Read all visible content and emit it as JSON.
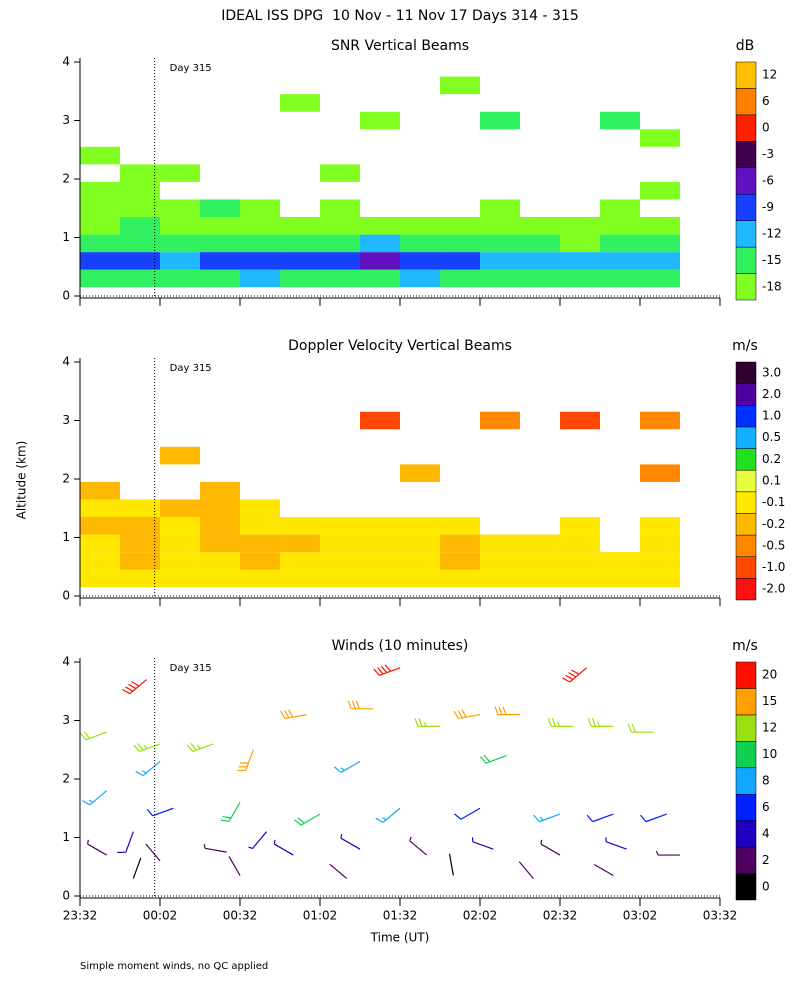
{
  "figure_title": "IDEAL ISS DPG  10 Nov - 11 Nov 17 Days 314 - 315",
  "y_axis_label": "Altitude (km)",
  "x_axis_label": "Time (UT)",
  "footnote": "Simple moment winds, no QC applied",
  "chart_data": [
    {
      "type": "heatmap",
      "title": "SNR Vertical Beams",
      "annotation": "Day 315",
      "marker_x": 28,
      "xlim": [
        0,
        240
      ],
      "ylim": [
        0,
        4
      ],
      "yticks": [
        0,
        1,
        2,
        3,
        4
      ],
      "x": [
        7.5,
        22.5,
        37.5,
        52.5,
        67.5,
        82.5,
        97.5,
        112.5,
        127.5,
        142.5,
        157.5,
        172.5,
        187.5,
        202.5,
        217.5
      ],
      "y": [
        0.3,
        0.6,
        0.9,
        1.2,
        1.5,
        1.8,
        2.1,
        2.4,
        2.7,
        3.0,
        3.3,
        3.6
      ],
      "z": [
        [
          -15,
          -14,
          -13,
          -14,
          -12,
          -15,
          -14,
          -13,
          -12,
          -14,
          -13,
          -15,
          -14,
          -13,
          -14
        ],
        [
          -9,
          -8,
          -10,
          -9,
          -9,
          -8,
          -7,
          -6,
          -7,
          -8,
          -11,
          -12,
          -10,
          -11,
          -12
        ],
        [
          -14,
          -13,
          -15,
          -14,
          -13,
          -14,
          -15,
          -12,
          -13,
          -15,
          -14,
          -13,
          -16,
          -15,
          -13
        ],
        [
          -16,
          -15,
          -16,
          -16,
          -17,
          -16,
          -17,
          -17,
          -16,
          -17,
          -17,
          -17,
          -16,
          -17,
          -17
        ],
        [
          -17,
          -16,
          -17,
          -15,
          -17,
          null,
          -17,
          null,
          null,
          null,
          -17,
          null,
          null,
          -17,
          null
        ],
        [
          -17,
          -17,
          null,
          null,
          null,
          null,
          null,
          null,
          null,
          null,
          null,
          null,
          null,
          null,
          -17
        ],
        [
          null,
          -17,
          -17,
          null,
          null,
          null,
          -17,
          null,
          null,
          null,
          null,
          null,
          null,
          null,
          null
        ],
        [
          -17,
          null,
          null,
          null,
          null,
          null,
          null,
          null,
          null,
          null,
          null,
          null,
          null,
          null,
          null
        ],
        [
          null,
          null,
          null,
          null,
          null,
          null,
          null,
          null,
          null,
          null,
          null,
          null,
          null,
          null,
          -17
        ],
        [
          null,
          null,
          null,
          null,
          null,
          null,
          null,
          -17,
          null,
          null,
          -15,
          null,
          null,
          -14,
          null
        ],
        [
          null,
          null,
          null,
          null,
          null,
          -17,
          null,
          null,
          null,
          null,
          null,
          null,
          null,
          null,
          null
        ],
        [
          null,
          null,
          null,
          null,
          null,
          null,
          null,
          null,
          null,
          -17,
          null,
          null,
          null,
          null,
          null
        ]
      ],
      "colorbar": {
        "title": "dB",
        "levels": [
          -18,
          -15,
          -12,
          -9,
          -6,
          -3,
          0,
          6,
          12
        ],
        "colors": [
          "#80ff20",
          "#30f060",
          "#20b8ff",
          "#1840ff",
          "#6010c0",
          "#400050",
          "#ff2000",
          "#ff8000",
          "#ffc000"
        ]
      }
    },
    {
      "type": "heatmap",
      "title": "Doppler Velocity Vertical Beams",
      "annotation": "Day 315",
      "marker_x": 28,
      "xlim": [
        0,
        240
      ],
      "ylim": [
        0,
        4
      ],
      "yticks": [
        0,
        1,
        2,
        3,
        4
      ],
      "x": [
        7.5,
        22.5,
        37.5,
        52.5,
        67.5,
        82.5,
        97.5,
        112.5,
        127.5,
        142.5,
        157.5,
        172.5,
        187.5,
        202.5,
        217.5
      ],
      "y": [
        0.3,
        0.6,
        0.9,
        1.2,
        1.5,
        1.8,
        2.1,
        2.4,
        2.7,
        3.0,
        3.3,
        3.6
      ],
      "z": [
        [
          -0.1,
          -0.1,
          -0.1,
          -0.1,
          -0.1,
          -0.1,
          -0.1,
          -0.1,
          -0.1,
          -0.1,
          -0.1,
          -0.1,
          -0.1,
          -0.1,
          -0.1
        ],
        [
          -0.1,
          -0.2,
          -0.1,
          -0.1,
          -0.2,
          -0.1,
          -0.1,
          -0.1,
          -0.1,
          -0.2,
          -0.1,
          -0.1,
          -0.1,
          -0.1,
          -0.1
        ],
        [
          -0.1,
          -0.2,
          -0.1,
          -0.2,
          -0.2,
          -0.2,
          -0.1,
          -0.1,
          -0.1,
          -0.2,
          -0.1,
          -0.1,
          -0.1,
          null,
          -0.1
        ],
        [
          -0.2,
          -0.2,
          -0.1,
          -0.2,
          -0.1,
          -0.1,
          -0.1,
          -0.1,
          -0.1,
          -0.1,
          null,
          null,
          -0.1,
          null,
          -0.1
        ],
        [
          -0.1,
          -0.1,
          -0.2,
          -0.2,
          -0.1,
          null,
          null,
          null,
          null,
          null,
          null,
          null,
          null,
          null,
          null
        ],
        [
          -0.2,
          null,
          null,
          -0.2,
          null,
          null,
          null,
          null,
          null,
          null,
          null,
          null,
          null,
          null,
          null
        ],
        [
          null,
          null,
          null,
          null,
          null,
          null,
          null,
          null,
          -0.2,
          null,
          null,
          null,
          null,
          null,
          -0.5
        ],
        [
          null,
          null,
          -0.2,
          null,
          null,
          null,
          null,
          null,
          null,
          null,
          null,
          null,
          null,
          null,
          null
        ],
        [
          null,
          null,
          null,
          null,
          null,
          null,
          null,
          null,
          null,
          null,
          null,
          null,
          null,
          null,
          null
        ],
        [
          null,
          null,
          null,
          null,
          null,
          null,
          null,
          -1.0,
          null,
          null,
          -0.5,
          null,
          -1.0,
          null,
          -0.5
        ],
        [
          null,
          null,
          null,
          null,
          null,
          null,
          null,
          null,
          null,
          null,
          null,
          null,
          null,
          null,
          null
        ],
        [
          null,
          null,
          null,
          null,
          null,
          null,
          null,
          null,
          null,
          null,
          null,
          null,
          null,
          null,
          null
        ]
      ],
      "colorbar": {
        "title": "m/s",
        "levels": [
          -2.0,
          -1.0,
          -0.5,
          -0.2,
          -0.1,
          0.1,
          0.2,
          0.5,
          1.0,
          2.0,
          3.0
        ],
        "level_labels": [
          "-2.0",
          "-1.0",
          "-0.5",
          "-0.2",
          "-0.1",
          "0.1",
          "0.2",
          "0.5",
          "1.0",
          "2.0",
          "3.0"
        ],
        "colors": [
          "#ff1010",
          "#ff4800",
          "#ff8800",
          "#ffb800",
          "#ffe800",
          "#e8ff40",
          "#20e020",
          "#10b0ff",
          "#0030ff",
          "#5000a0",
          "#300030"
        ]
      }
    },
    {
      "type": "barbs",
      "title": "Winds (10 minutes)",
      "annotation": "Day 315",
      "marker_x": 28,
      "xlim": [
        0,
        240
      ],
      "ylim": [
        0,
        4
      ],
      "yticks": [
        0,
        1,
        2,
        3,
        4
      ],
      "xticks": [
        {
          "value": 0,
          "label": "23:32"
        },
        {
          "value": 30,
          "label": "00:02"
        },
        {
          "value": 60,
          "label": "00:32"
        },
        {
          "value": 90,
          "label": "01:02"
        },
        {
          "value": 120,
          "label": "01:32"
        },
        {
          "value": 150,
          "label": "02:02"
        },
        {
          "value": 180,
          "label": "02:32"
        },
        {
          "value": 210,
          "label": "03:02"
        },
        {
          "value": 240,
          "label": "03:32"
        }
      ],
      "x": [
        10,
        25,
        30,
        50,
        65,
        85,
        110,
        120,
        135,
        150,
        165,
        185,
        200,
        215,
        190,
        105,
        160,
        30,
        10,
        35,
        60,
        90,
        120,
        150,
        180,
        200,
        220,
        20,
        70,
        10,
        30,
        55,
        80,
        105,
        130,
        155,
        180,
        205,
        225,
        20,
        60,
        100,
        140,
        170,
        200
      ],
      "altitude": [
        2.8,
        3.7,
        2.6,
        2.6,
        2.5,
        3.1,
        3.2,
        3.9,
        2.9,
        3.1,
        3.1,
        2.9,
        2.9,
        2.8,
        3.9,
        2.3,
        2.4,
        2.3,
        1.8,
        1.5,
        1.6,
        1.4,
        1.5,
        1.5,
        1.4,
        1.4,
        1.4,
        1.1,
        1.1,
        0.7,
        0.6,
        0.75,
        0.7,
        0.8,
        0.7,
        0.8,
        0.7,
        0.8,
        0.7,
        0.3,
        0.35,
        0.3,
        0.35,
        0.3,
        0.35
      ],
      "speed": [
        12,
        20,
        13,
        13,
        17,
        16,
        16,
        20,
        14,
        15,
        16,
        14,
        13,
        12,
        20,
        8,
        11,
        8,
        8,
        7,
        11,
        10,
        8,
        7,
        8,
        6,
        6,
        5,
        4,
        3,
        2,
        3,
        4,
        4,
        3,
        4,
        3,
        4,
        3,
        1,
        2,
        2,
        1,
        2,
        2
      ],
      "direction": [
        250,
        230,
        250,
        250,
        200,
        260,
        270,
        250,
        270,
        260,
        270,
        270,
        270,
        270,
        230,
        240,
        250,
        230,
        230,
        250,
        210,
        240,
        230,
        240,
        250,
        250,
        250,
        200,
        220,
        300,
        320,
        280,
        300,
        300,
        310,
        290,
        300,
        290,
        270,
        20,
        330,
        310,
        350,
        320,
        300
      ],
      "colorbar": {
        "title": "m/s",
        "levels": [
          0,
          2,
          4,
          6,
          8,
          10,
          12,
          15,
          20
        ],
        "colors": [
          "#000000",
          "#500060",
          "#2000c0",
          "#0020ff",
          "#10a8ff",
          "#10d050",
          "#98e010",
          "#ffa000",
          "#ff1000"
        ]
      }
    }
  ]
}
